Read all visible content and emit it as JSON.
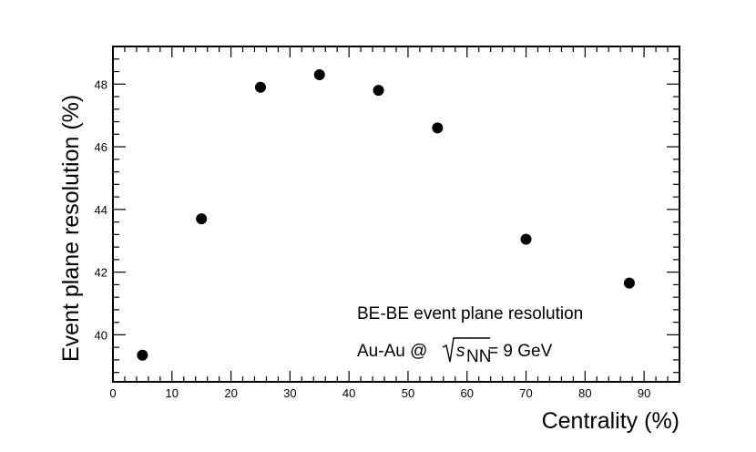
{
  "chart_data": {
    "type": "scatter",
    "xlabel": "Centrality (%)",
    "ylabel": "Event plane resolution (%)",
    "xlim": [
      0,
      96
    ],
    "ylim": [
      38.5,
      49.2
    ],
    "x_ticks": [
      0,
      10,
      20,
      30,
      40,
      50,
      60,
      70,
      80,
      90
    ],
    "y_ticks": [
      40,
      42,
      44,
      46,
      48
    ],
    "x_minor_step": 2,
    "y_minor_step": 0.4,
    "grid": false,
    "legend": "none",
    "marker_color": "#000000",
    "series": [
      {
        "points": [
          {
            "x": 5,
            "y": 39.35
          },
          {
            "x": 15,
            "y": 43.7
          },
          {
            "x": 25,
            "y": 47.9
          },
          {
            "x": 35,
            "y": 48.3
          },
          {
            "x": 45,
            "y": 47.8
          },
          {
            "x": 55,
            "y": 46.6
          },
          {
            "x": 70,
            "y": 43.05
          },
          {
            "x": 87.5,
            "y": 41.65
          }
        ]
      }
    ],
    "annotations": {
      "line1": "BE-BE event plane resolution",
      "line2_prefix": "Au-Au @ ",
      "line2_symbol": "s",
      "line2_subscript": "NN",
      "line2_suffix": " = 9 GeV"
    }
  }
}
